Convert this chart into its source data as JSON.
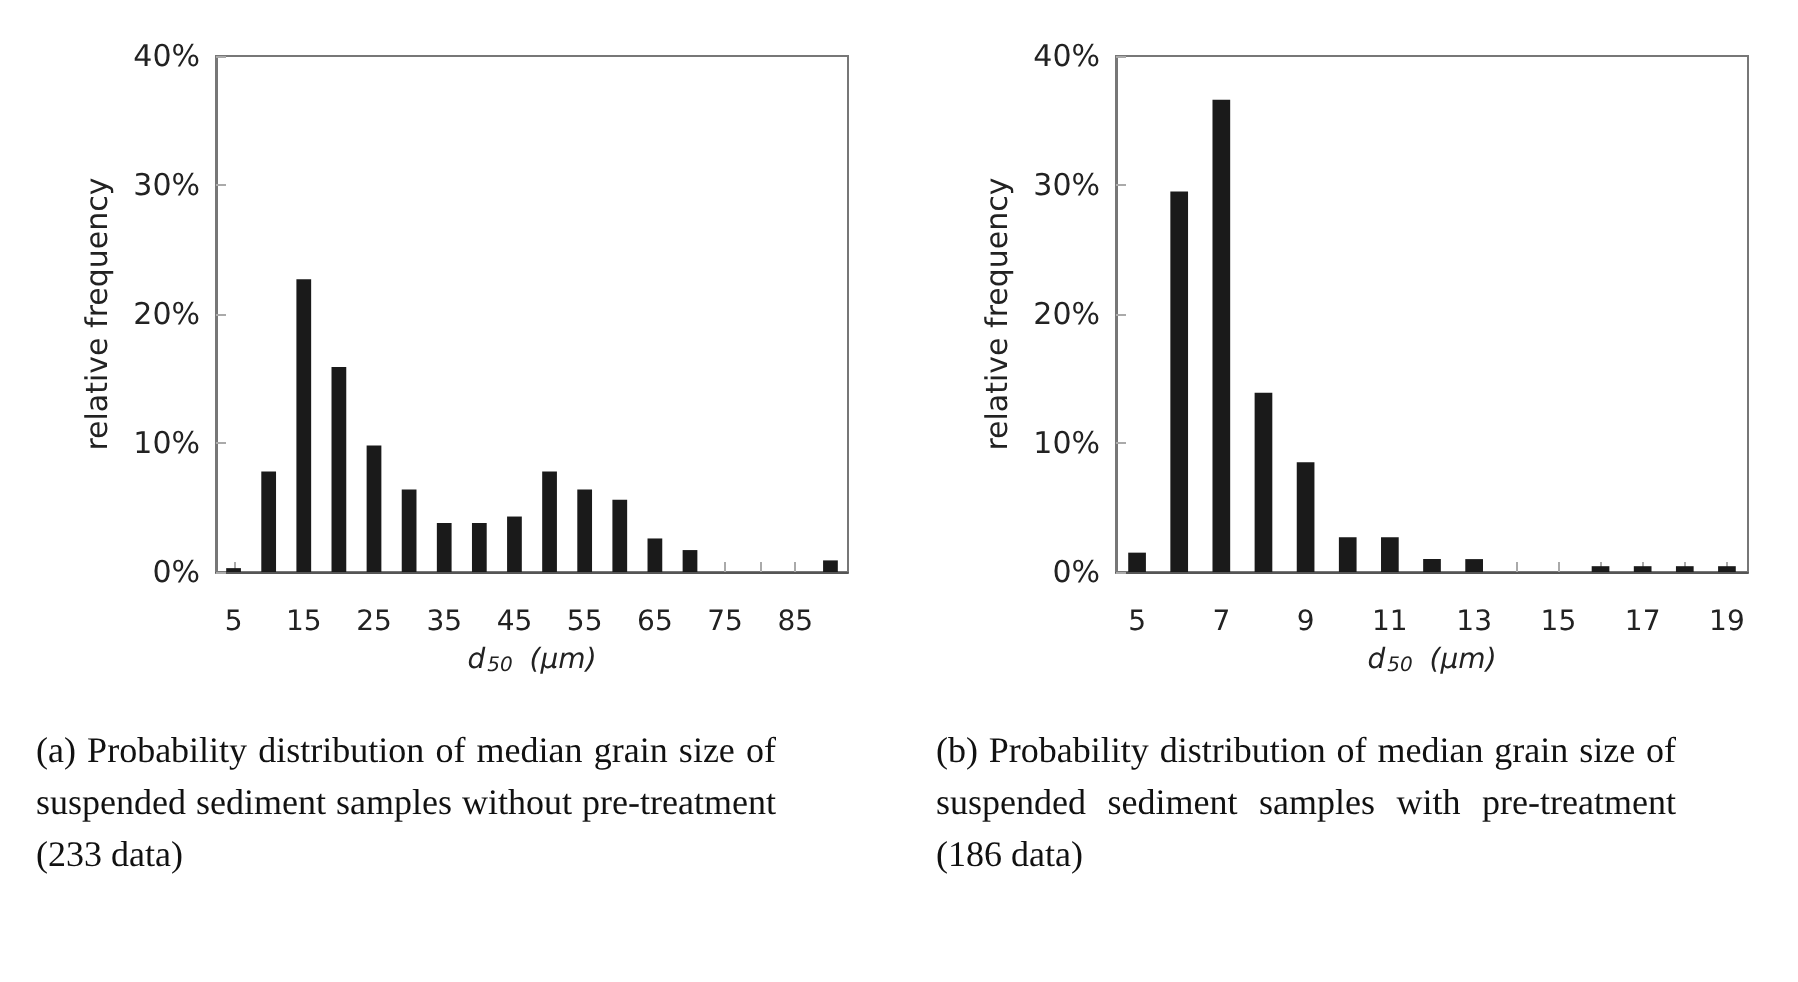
{
  "chart_data": [
    {
      "type": "bar",
      "xlabel": "d$_{50}$ (μm)",
      "ylabel": "relative frequency",
      "color": "#1a1a1a",
      "categories": [
        "5",
        null,
        "15",
        null,
        "25",
        null,
        "35",
        null,
        "45",
        null,
        "55",
        null,
        "65",
        null,
        "75",
        null,
        "85",
        null
      ],
      "values": [
        0.3,
        7.8,
        22.7,
        15.9,
        9.8,
        6.4,
        3.8,
        3.8,
        4.3,
        7.8,
        6.4,
        5.6,
        2.6,
        1.7,
        0,
        0,
        0,
        0.9
      ],
      "ylim": [
        0,
        40
      ],
      "yticks": [
        {
          "value": 0,
          "label": "0%"
        },
        {
          "value": 10,
          "label": "10%"
        },
        {
          "value": 20,
          "label": "20%"
        },
        {
          "value": 30,
          "label": "30%"
        },
        {
          "value": 40,
          "label": "40%"
        }
      ],
      "grid": false,
      "annotations": [
        "(a) Probability distribution of median grain size of suspended sediment samples without pre-treatment (233 data)"
      ]
    },
    {
      "type": "bar",
      "xlabel": "d$_{50}$ (μm)",
      "ylabel": "relative frequency",
      "color": "#1a1a1a",
      "categories": [
        "5",
        null,
        "7",
        null,
        "9",
        null,
        "11",
        null,
        "13",
        null,
        "15",
        null,
        "17",
        null,
        "19"
      ],
      "values": [
        1.5,
        29.5,
        36.6,
        13.9,
        8.5,
        2.7,
        2.7,
        1.0,
        1.0,
        0,
        0,
        0.45,
        0.45,
        0.45,
        0.45
      ],
      "ylim": [
        0,
        40
      ],
      "yticks": [
        {
          "value": 0,
          "label": "0%"
        },
        {
          "value": 10,
          "label": "10%"
        },
        {
          "value": 20,
          "label": "20%"
        },
        {
          "value": 30,
          "label": "30%"
        },
        {
          "value": 40,
          "label": "40%"
        }
      ],
      "grid": false,
      "annotations": [
        "(b) Probability distribution of median grain size of suspended sediment samples with pre-treatment (186 data)"
      ]
    }
  ]
}
